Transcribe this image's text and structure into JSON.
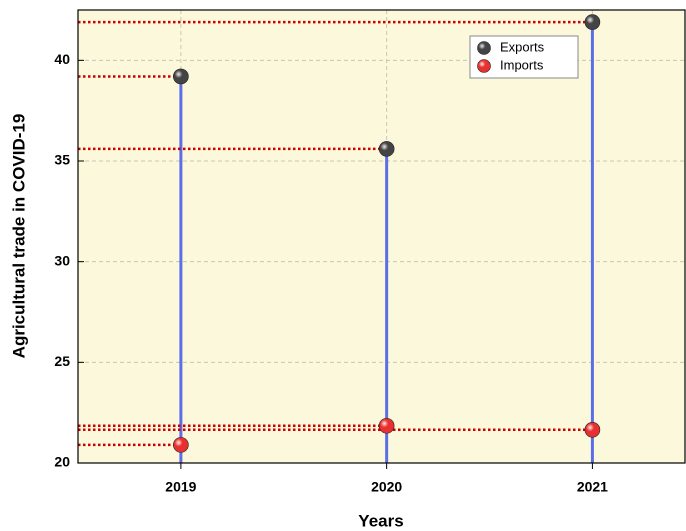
{
  "chart_data": {
    "type": "scatter",
    "xlabel": "Years",
    "ylabel": "Agricultural trade in COVID-19",
    "x": [
      2019,
      2020,
      2021
    ],
    "series": [
      {
        "name": "Exports",
        "color": "#444444",
        "values": [
          39.2,
          35.6,
          41.9
        ]
      },
      {
        "name": "Imports",
        "color": "#e83030",
        "values": [
          20.9,
          21.85,
          21.65
        ]
      }
    ],
    "xlim": [
      2018.5,
      2021.45
    ],
    "xticks": [
      2019,
      2020,
      2021
    ],
    "ylim": [
      20,
      42.5
    ],
    "yticks": [
      20,
      25,
      30,
      35,
      40
    ],
    "grid": true,
    "legend": "upper right",
    "stem_color": "#5b6ee8",
    "guide_color": "#cc0000",
    "background": "#fbf8dc"
  }
}
